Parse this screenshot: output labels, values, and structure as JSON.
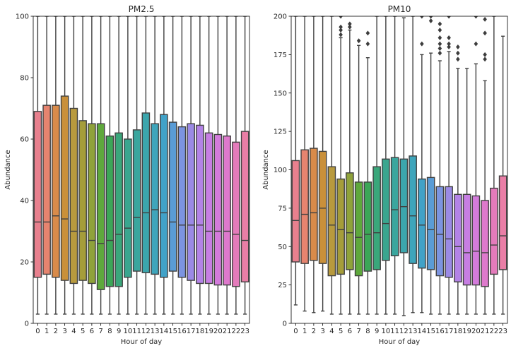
{
  "chart_data": [
    {
      "type": "box",
      "title": "PM2.5",
      "xlabel": "Hour of day",
      "ylabel": "Abundance",
      "ylim": [
        0,
        100
      ],
      "yticks": [
        0,
        20,
        40,
        60,
        80,
        100
      ],
      "categories": [
        "0",
        "1",
        "2",
        "3",
        "4",
        "5",
        "6",
        "7",
        "8",
        "9",
        "10",
        "11",
        "12",
        "13",
        "14",
        "15",
        "16",
        "17",
        "18",
        "19",
        "20",
        "21",
        "22",
        "23"
      ],
      "colors": [
        "#e8808e",
        "#e6846f",
        "#d98b4a",
        "#c9903a",
        "#b89a3e",
        "#a59d3a",
        "#8fa23a",
        "#5ea83c",
        "#3ca657",
        "#3aa77b",
        "#3aa68f",
        "#3aa69e",
        "#3ca6ad",
        "#3ea5bb",
        "#41a2c8",
        "#5a9cd6",
        "#7c94e0",
        "#9b8ae5",
        "#b383e6",
        "#c77ee3",
        "#d37bdb",
        "#de79cc",
        "#e47bbb",
        "#e97ea6"
      ],
      "boxes": [
        {
          "whislo": 3,
          "q1": 15,
          "med": 33,
          "q3": 69,
          "whishi": 100
        },
        {
          "whislo": 3,
          "q1": 16,
          "med": 33,
          "q3": 71,
          "whishi": 100
        },
        {
          "whislo": 3,
          "q1": 15,
          "med": 35,
          "q3": 71,
          "whishi": 100
        },
        {
          "whislo": 3,
          "q1": 14,
          "med": 34,
          "q3": 74,
          "whishi": 100
        },
        {
          "whislo": 3,
          "q1": 13,
          "med": 30,
          "q3": 70,
          "whishi": 100
        },
        {
          "whislo": 3,
          "q1": 14,
          "med": 30,
          "q3": 66,
          "whishi": 100
        },
        {
          "whislo": 3,
          "q1": 13,
          "med": 27,
          "q3": 65,
          "whishi": 100
        },
        {
          "whislo": 3,
          "q1": 11,
          "med": 26,
          "q3": 65,
          "whishi": 100
        },
        {
          "whislo": 3,
          "q1": 12,
          "med": 27,
          "q3": 61,
          "whishi": 100
        },
        {
          "whislo": 3,
          "q1": 12,
          "med": 29,
          "q3": 62,
          "whishi": 100
        },
        {
          "whislo": 3,
          "q1": 15,
          "med": 31,
          "q3": 60,
          "whishi": 100
        },
        {
          "whislo": 3,
          "q1": 17,
          "med": 34.5,
          "q3": 63,
          "whishi": 100
        },
        {
          "whislo": 3,
          "q1": 16.5,
          "med": 36,
          "q3": 68.5,
          "whishi": 100
        },
        {
          "whislo": 3,
          "q1": 16,
          "med": 37,
          "q3": 65,
          "whishi": 100
        },
        {
          "whislo": 3,
          "q1": 15,
          "med": 36,
          "q3": 68,
          "whishi": 100
        },
        {
          "whislo": 3,
          "q1": 17,
          "med": 33,
          "q3": 65.5,
          "whishi": 100
        },
        {
          "whislo": 3,
          "q1": 15,
          "med": 32,
          "q3": 64,
          "whishi": 100
        },
        {
          "whislo": 3,
          "q1": 14,
          "med": 32,
          "q3": 65,
          "whishi": 100
        },
        {
          "whislo": 3,
          "q1": 13,
          "med": 32,
          "q3": 64.5,
          "whishi": 100
        },
        {
          "whislo": 3,
          "q1": 13,
          "med": 30,
          "q3": 62,
          "whishi": 100
        },
        {
          "whislo": 3,
          "q1": 12.5,
          "med": 30,
          "q3": 61.5,
          "whishi": 100
        },
        {
          "whislo": 3,
          "q1": 12.5,
          "med": 30,
          "q3": 61,
          "whishi": 100
        },
        {
          "whislo": 3,
          "q1": 12,
          "med": 29,
          "q3": 59,
          "whishi": 100
        },
        {
          "whislo": 3,
          "q1": 13.5,
          "med": 27,
          "q3": 62.5,
          "whishi": 100
        }
      ]
    },
    {
      "type": "box",
      "title": "PM10",
      "xlabel": "Hour of day",
      "ylabel": "Abundance",
      "ylim": [
        0,
        200
      ],
      "yticks": [
        0,
        25,
        50,
        75,
        100,
        125,
        150,
        175,
        200
      ],
      "categories": [
        "0",
        "1",
        "2",
        "3",
        "4",
        "5",
        "6",
        "7",
        "8",
        "9",
        "10",
        "11",
        "12",
        "13",
        "14",
        "15",
        "16",
        "17",
        "18",
        "19",
        "20",
        "21",
        "22",
        "23"
      ],
      "colors": [
        "#e8808e",
        "#e6846f",
        "#d98b4a",
        "#c9903a",
        "#b89a3e",
        "#a59d3a",
        "#8fa23a",
        "#5ea83c",
        "#3ca657",
        "#3aa77b",
        "#3aa68f",
        "#3aa69e",
        "#3ca6ad",
        "#3ea5bb",
        "#41a2c8",
        "#5a9cd6",
        "#7c94e0",
        "#9b8ae5",
        "#b383e6",
        "#c77ee3",
        "#d37bdb",
        "#de79cc",
        "#e47bbb",
        "#e97ea6"
      ],
      "boxes": [
        {
          "whislo": 12,
          "q1": 40,
          "med": 67,
          "q3": 106,
          "whishi": 200,
          "fliers": []
        },
        {
          "whislo": 8,
          "q1": 39,
          "med": 71,
          "q3": 113,
          "whishi": 200,
          "fliers": []
        },
        {
          "whislo": 7,
          "q1": 41,
          "med": 72,
          "q3": 114,
          "whishi": 200,
          "fliers": []
        },
        {
          "whislo": 8,
          "q1": 39,
          "med": 75,
          "q3": 112,
          "whishi": 200,
          "fliers": []
        },
        {
          "whislo": 6,
          "q1": 31,
          "med": 64,
          "q3": 102,
          "whishi": 200,
          "fliers": []
        },
        {
          "whislo": 6,
          "q1": 32,
          "med": 61,
          "q3": 94,
          "whishi": 186,
          "fliers": [
            188,
            191,
            193,
            200
          ]
        },
        {
          "whislo": 6,
          "q1": 35,
          "med": 59,
          "q3": 98,
          "whishi": 191,
          "fliers": [
            193,
            195
          ]
        },
        {
          "whislo": 6,
          "q1": 31,
          "med": 56,
          "q3": 92,
          "whishi": 181,
          "fliers": [
            184
          ]
        },
        {
          "whislo": 6,
          "q1": 34,
          "med": 58,
          "q3": 92,
          "whishi": 173,
          "fliers": [
            182,
            189
          ]
        },
        {
          "whislo": 6,
          "q1": 35,
          "med": 59,
          "q3": 102,
          "whishi": 200,
          "fliers": []
        },
        {
          "whislo": 6,
          "q1": 41,
          "med": 65,
          "q3": 107,
          "whishi": 200,
          "fliers": []
        },
        {
          "whislo": 6,
          "q1": 44,
          "med": 74,
          "q3": 108,
          "whishi": 200,
          "fliers": []
        },
        {
          "whislo": 5,
          "q1": 46,
          "med": 76,
          "q3": 107,
          "whishi": 199,
          "fliers": []
        },
        {
          "whislo": 7,
          "q1": 39,
          "med": 70,
          "q3": 109,
          "whishi": 200,
          "fliers": []
        },
        {
          "whislo": 7,
          "q1": 36,
          "med": 64,
          "q3": 94,
          "whishi": 175,
          "fliers": [
            182,
            200
          ]
        },
        {
          "whislo": 6,
          "q1": 35,
          "med": 61,
          "q3": 95,
          "whishi": 176,
          "fliers": [
            197,
            200
          ]
        },
        {
          "whislo": 6,
          "q1": 31,
          "med": 58,
          "q3": 89,
          "whishi": 171,
          "fliers": [
            176,
            179,
            182,
            186,
            191,
            195
          ]
        },
        {
          "whislo": 6,
          "q1": 30,
          "med": 55,
          "q3": 89,
          "whishi": 177,
          "fliers": [
            180,
            182,
            186,
            200
          ]
        },
        {
          "whislo": 6,
          "q1": 27,
          "med": 50,
          "q3": 84,
          "whishi": 166,
          "fliers": [
            172,
            176,
            180
          ]
        },
        {
          "whislo": 6,
          "q1": 25,
          "med": 46,
          "q3": 84,
          "whishi": 166,
          "fliers": []
        },
        {
          "whislo": 6,
          "q1": 25,
          "med": 47,
          "q3": 83,
          "whishi": 169,
          "fliers": [
            182,
            200
          ]
        },
        {
          "whislo": 6,
          "q1": 24,
          "med": 46,
          "q3": 80,
          "whishi": 158,
          "fliers": [
            172,
            175,
            189,
            198
          ]
        },
        {
          "whislo": 6,
          "q1": 32,
          "med": 51,
          "q3": 88,
          "whishi": 200,
          "fliers": []
        },
        {
          "whislo": 6,
          "q1": 35,
          "med": 57,
          "q3": 96,
          "whishi": 187,
          "fliers": []
        }
      ]
    }
  ]
}
